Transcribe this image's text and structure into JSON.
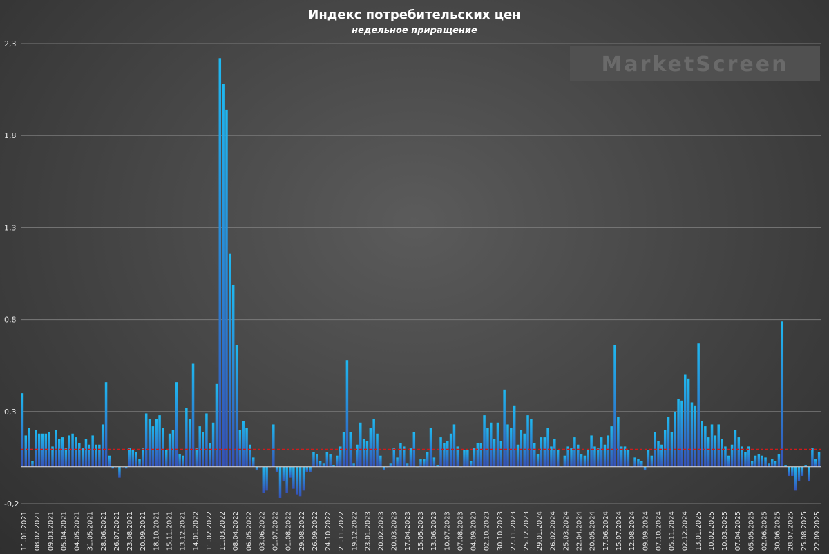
{
  "chart_data": {
    "type": "bar",
    "title": "Индекс потребительских цен",
    "subtitle": "недельное приращение",
    "watermark": "MarketScreen",
    "ylim": [
      -0.2,
      2.3
    ],
    "yticks": [
      "2,3",
      "1,8",
      "1,3",
      "0,8",
      "0,3",
      "-0,2"
    ],
    "ytick_values": [
      2.3,
      1.8,
      1.3,
      0.8,
      0.3,
      -0.2
    ],
    "grid": true,
    "average_line": 0.095,
    "colors": {
      "bar_top": "#1fb8f0",
      "bar_bottom": "#3552b8",
      "average": "#d11a1a"
    },
    "xtick_labels": [
      "11.01.2021",
      "08.02.2021",
      "09.03.2021",
      "05.04.2021",
      "04.05.2021",
      "31.05.2021",
      "28.06.2021",
      "26.07.2021",
      "23.08.2021",
      "20.09.2021",
      "18.10.2021",
      "15.11.2021",
      "13.12.2021",
      "14.01.2022",
      "11.02.2022",
      "11.03.2022",
      "08.04.2022",
      "06.05.2022",
      "03.06.2022",
      "01.07.2022",
      "01.08.2022",
      "29.08.2022",
      "26.09.2022",
      "24.10.2022",
      "21.11.2022",
      "19.12.2022",
      "23.01.2023",
      "20.02.2023",
      "20.03.2023",
      "17.04.2023",
      "15.05.2023",
      "13.06.2023",
      "10.07.2023",
      "07.08.2023",
      "04.09.2023",
      "02.10.2023",
      "30.10.2023",
      "27.11.2023",
      "25.12.2023",
      "29.01.2024",
      "26.02.2024",
      "25.03.2024",
      "22.04.2024",
      "20.05.2024",
      "17.06.2024",
      "15.07.2024",
      "12.08.2024",
      "09.09.2024",
      "07.10.2024",
      "05.11.2024",
      "02.12.2024",
      "13.01.2025",
      "10.02.2025",
      "10.03.2025",
      "07.04.2025",
      "05.05.2025",
      "02.06.2025",
      "30.06.2025",
      "28.07.2025",
      "25.08.2025",
      "22.09.2025"
    ],
    "values": [
      0.4,
      0.17,
      0.21,
      0.03,
      0.2,
      0.18,
      0.18,
      0.18,
      0.19,
      0.11,
      0.2,
      0.15,
      0.16,
      0.1,
      0.17,
      0.18,
      0.16,
      0.13,
      0.1,
      0.15,
      0.12,
      0.17,
      0.12,
      0.12,
      0.23,
      0.46,
      0.06,
      -0.01,
      0.0,
      -0.06,
      0.0,
      -0.01,
      0.1,
      0.09,
      0.08,
      0.04,
      0.1,
      0.29,
      0.26,
      0.22,
      0.26,
      0.28,
      0.21,
      0.09,
      0.18,
      0.2,
      0.46,
      0.07,
      0.06,
      0.32,
      0.26,
      0.56,
      0.1,
      0.22,
      0.19,
      0.29,
      0.13,
      0.24,
      0.45,
      2.22,
      2.08,
      1.94,
      1.16,
      0.99,
      0.66,
      0.2,
      0.25,
      0.21,
      0.12,
      0.05,
      -0.02,
      0.0,
      -0.14,
      -0.13,
      0.0,
      0.23,
      -0.03,
      -0.17,
      -0.08,
      -0.14,
      -0.06,
      -0.12,
      -0.15,
      -0.16,
      -0.13,
      -0.03,
      -0.03,
      0.08,
      0.07,
      0.03,
      0.02,
      0.08,
      0.07,
      0.01,
      0.06,
      0.11,
      0.19,
      0.58,
      0.19,
      0.02,
      0.12,
      0.24,
      0.15,
      0.14,
      0.21,
      0.26,
      0.18,
      0.06,
      -0.02,
      0.0,
      0.02,
      0.1,
      0.05,
      0.13,
      0.11,
      0.02,
      0.1,
      0.19,
      0.0,
      0.04,
      0.04,
      0.08,
      0.21,
      0.05,
      0.01,
      0.16,
      0.13,
      0.14,
      0.18,
      0.23,
      0.11,
      0.0,
      0.09,
      0.09,
      0.03,
      0.1,
      0.13,
      0.13,
      0.28,
      0.21,
      0.24,
      0.15,
      0.24,
      0.14,
      0.42,
      0.23,
      0.21,
      0.33,
      0.12,
      0.2,
      0.18,
      0.28,
      0.26,
      0.13,
      0.07,
      0.16,
      0.16,
      0.21,
      0.11,
      0.15,
      0.09,
      0.0,
      0.06,
      0.11,
      0.1,
      0.16,
      0.12,
      0.07,
      0.06,
      0.09,
      0.17,
      0.11,
      0.1,
      0.16,
      0.12,
      0.17,
      0.22,
      0.66,
      0.27,
      0.11,
      0.11,
      0.09,
      0.0,
      0.05,
      0.04,
      0.03,
      -0.02,
      0.09,
      0.06,
      0.19,
      0.14,
      0.12,
      0.2,
      0.27,
      0.19,
      0.3,
      0.37,
      0.36,
      0.5,
      0.48,
      0.35,
      0.33,
      0.67,
      0.25,
      0.22,
      0.16,
      0.23,
      0.17,
      0.23,
      0.15,
      0.11,
      0.06,
      0.12,
      0.2,
      0.16,
      0.11,
      0.08,
      0.11,
      0.03,
      0.06,
      0.07,
      0.06,
      0.05,
      0.02,
      0.04,
      0.03,
      0.07,
      0.79,
      0.01,
      -0.05,
      -0.05,
      -0.13,
      -0.08,
      -0.05,
      0.01,
      -0.08,
      0.1,
      0.04,
      0.08
    ]
  }
}
